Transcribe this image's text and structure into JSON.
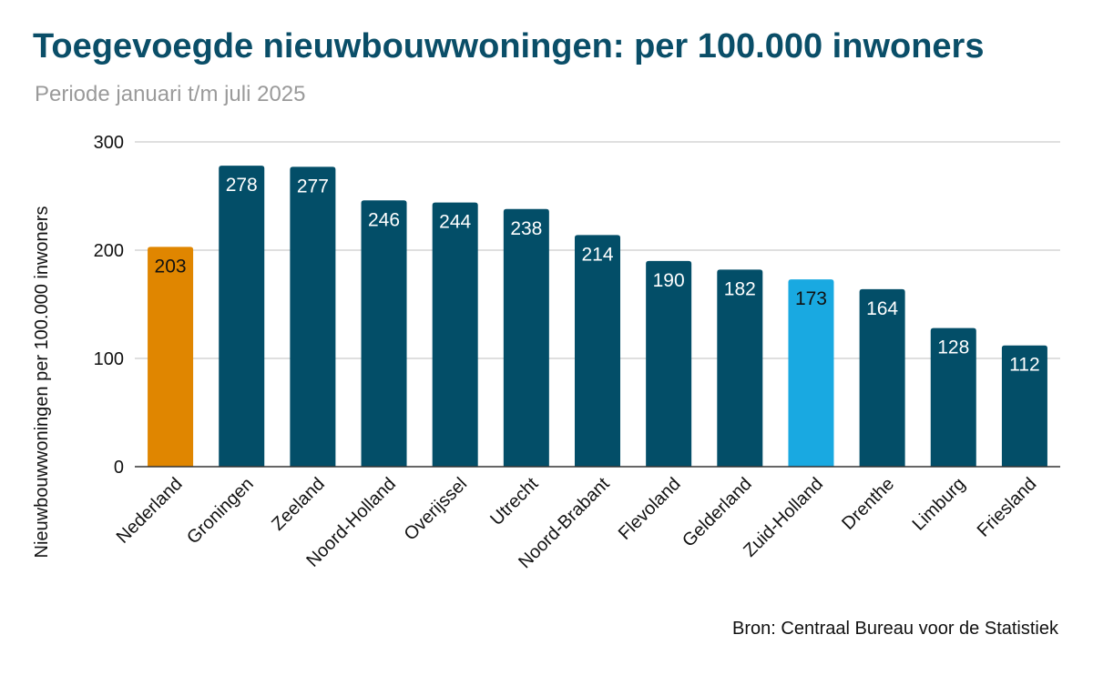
{
  "chart_data": {
    "type": "bar",
    "title": "Toegevoegde nieuwbouwwoningen: per 100.000 inwoners",
    "subtitle": "Periode januari t/m juli 2025",
    "ylabel": "Nieuwbouwwoningen per 100.000 inwoners",
    "xlabel": "",
    "ylim": [
      0,
      300
    ],
    "yticks": [
      0,
      100,
      200,
      300
    ],
    "grid": true,
    "categories": [
      "Nederland",
      "Groningen",
      "Zeeland",
      "Noord-Holland",
      "Overijssel",
      "Utrecht",
      "Noord-Brabant",
      "Flevoland",
      "Gelderland",
      "Zuid-Holland",
      "Drenthe",
      "Limburg",
      "Friesland"
    ],
    "values": [
      203,
      278,
      277,
      246,
      244,
      238,
      214,
      190,
      182,
      173,
      164,
      128,
      112
    ],
    "bar_colors": [
      "#e08600",
      "#034e68",
      "#034e68",
      "#034e68",
      "#034e68",
      "#034e68",
      "#034e68",
      "#034e68",
      "#034e68",
      "#19a9e1",
      "#034e68",
      "#034e68",
      "#034e68"
    ],
    "label_colors": [
      "#111111",
      "#ffffff",
      "#ffffff",
      "#ffffff",
      "#ffffff",
      "#ffffff",
      "#ffffff",
      "#ffffff",
      "#ffffff",
      "#111111",
      "#ffffff",
      "#ffffff",
      "#ffffff"
    ],
    "source": "Bron: Centraal Bureau voor de Statistiek"
  }
}
